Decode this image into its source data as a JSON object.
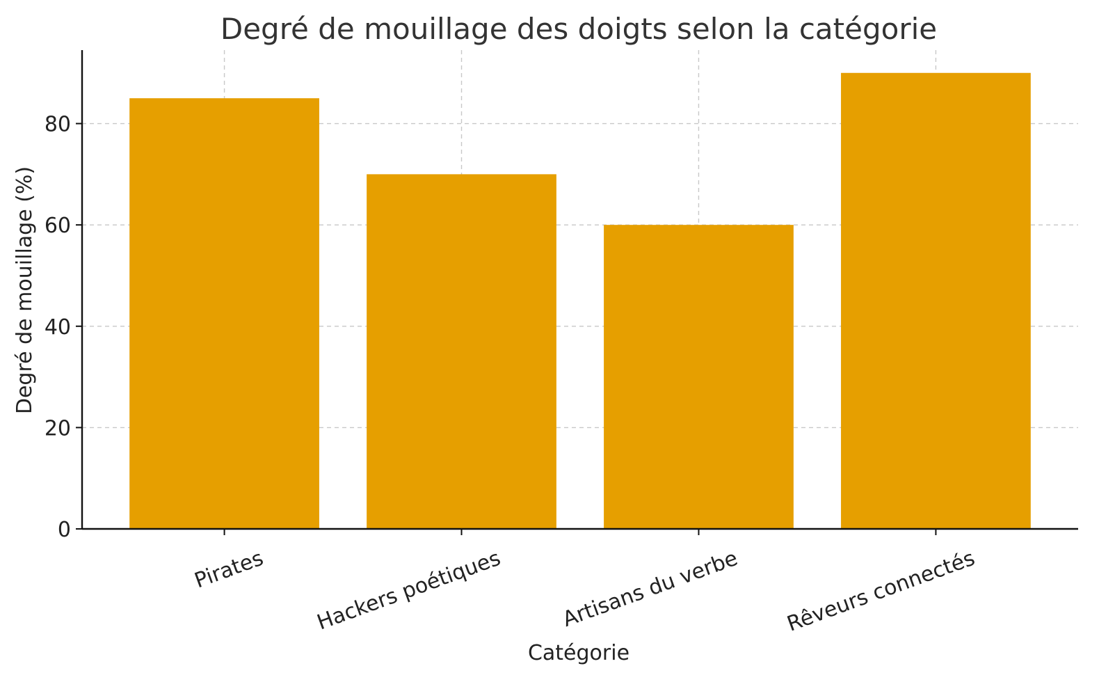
{
  "chart_data": {
    "type": "bar",
    "title": "Degré de mouillage des doigts selon la catégorie",
    "xlabel": "Catégorie",
    "ylabel": "Degré de mouillage (%)",
    "categories": [
      "Pirates",
      "Hackers poétiques",
      "Artisans du verbe",
      "Rêveurs connectés"
    ],
    "values": [
      85,
      70,
      60,
      90
    ],
    "ylim": [
      0,
      94.5
    ],
    "yticks": [
      0,
      20,
      40,
      60,
      80
    ],
    "grid": true,
    "bar_color": "#E69F00",
    "x_tick_rotation_deg": -20
  }
}
